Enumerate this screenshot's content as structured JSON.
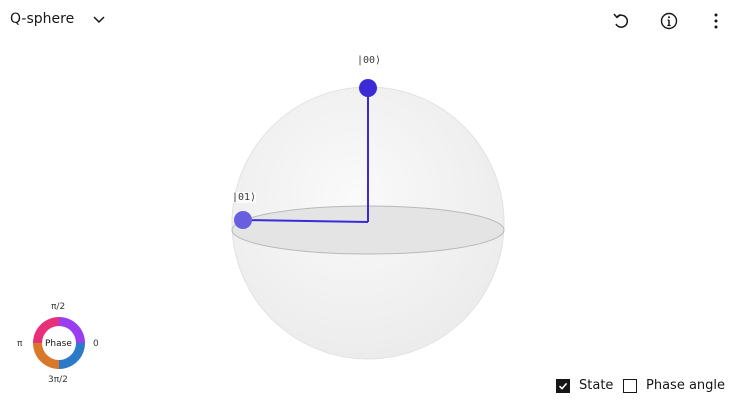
{
  "header": {
    "title": "Q-sphere",
    "icons": [
      "chevron-down-icon",
      "reset-icon",
      "info-icon",
      "overflow-menu-icon"
    ]
  },
  "sphere": {
    "states": [
      {
        "label": "|00⟩",
        "color": "#3a2bd6"
      },
      {
        "label": "|01⟩",
        "color": "#6a5ee0"
      }
    ]
  },
  "phase_legend": {
    "center_label": "Phase",
    "top": "π/2",
    "left": "π",
    "right": "0",
    "bottom": "3π/2"
  },
  "options": {
    "state_label": "State",
    "state_checked": true,
    "phase_angle_label": "Phase angle",
    "phase_angle_checked": false
  }
}
